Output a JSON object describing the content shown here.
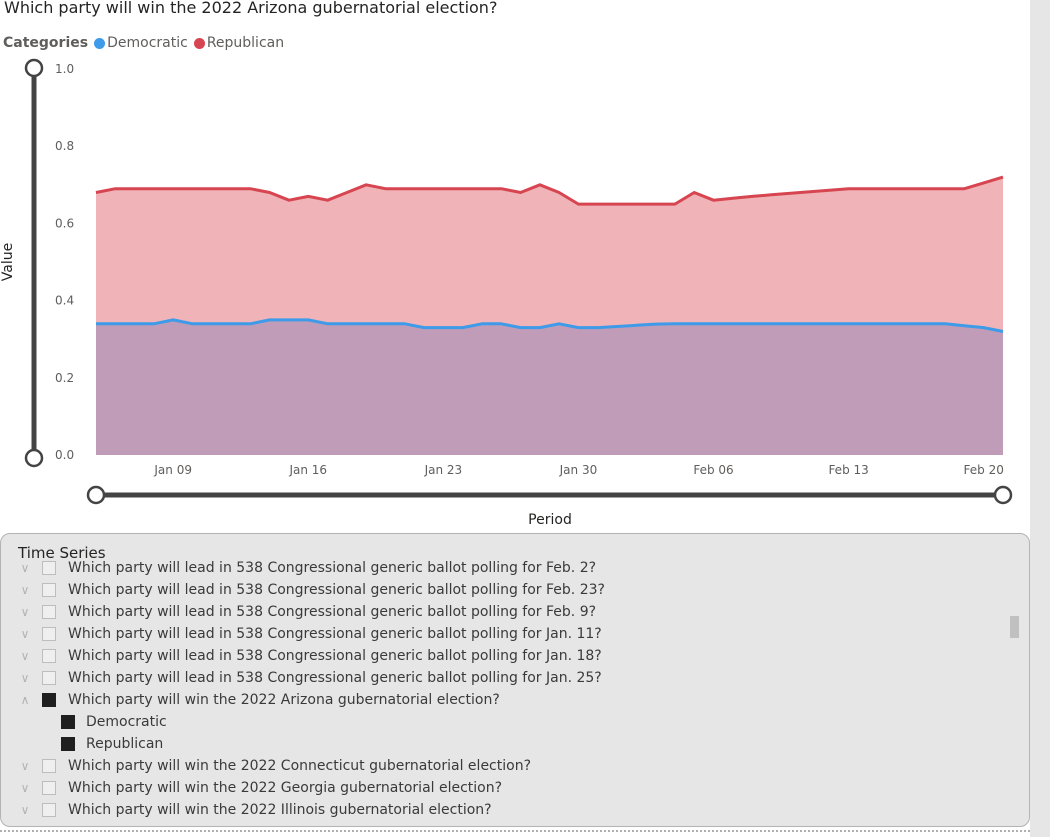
{
  "title": "Which party will win the 2022 Arizona gubernatorial election?",
  "legend": {
    "title": "Categories",
    "items": [
      {
        "label": "Democratic",
        "color": "#3d9be9"
      },
      {
        "label": "Republican",
        "color": "#d64550"
      }
    ]
  },
  "chart_data": {
    "type": "area",
    "xlabel": "Period",
    "ylabel": "Value",
    "ylim": [
      0,
      1
    ],
    "yticks": [
      "1.0",
      "0.8",
      "0.6",
      "0.4",
      "0.2",
      "0.0"
    ],
    "xtick_labels": [
      "Jan 09",
      "Jan 16",
      "Jan 23",
      "Jan 30",
      "Feb 06",
      "Feb 13",
      "Feb 20"
    ],
    "x": [
      "2022-01-05",
      "2022-01-06",
      "2022-01-07",
      "2022-01-08",
      "2022-01-09",
      "2022-01-10",
      "2022-01-11",
      "2022-01-12",
      "2022-01-13",
      "2022-01-14",
      "2022-01-15",
      "2022-01-16",
      "2022-01-17",
      "2022-01-18",
      "2022-01-19",
      "2022-01-20",
      "2022-01-21",
      "2022-01-22",
      "2022-01-23",
      "2022-01-24",
      "2022-01-25",
      "2022-01-26",
      "2022-01-27",
      "2022-01-28",
      "2022-01-29",
      "2022-01-30",
      "2022-01-31",
      "2022-02-01",
      "2022-02-02",
      "2022-02-03",
      "2022-02-04",
      "2022-02-05",
      "2022-02-06",
      "2022-02-07",
      "2022-02-08",
      "2022-02-09",
      "2022-02-10",
      "2022-02-11",
      "2022-02-12",
      "2022-02-13",
      "2022-02-14",
      "2022-02-15",
      "2022-02-16",
      "2022-02-17",
      "2022-02-18",
      "2022-02-19",
      "2022-02-20",
      "2022-02-21"
    ],
    "series": [
      {
        "name": "Democratic",
        "color": "#3d9be9",
        "fill": "#c09cb8",
        "values": [
          0.34,
          0.34,
          0.34,
          0.34,
          0.35,
          0.34,
          0.34,
          0.34,
          0.34,
          0.35,
          0.35,
          0.35,
          0.34,
          0.34,
          0.34,
          0.34,
          0.34,
          0.33,
          0.33,
          0.33,
          0.34,
          0.34,
          0.33,
          0.33,
          0.34,
          0.33,
          0.33,
          0.333,
          0.336,
          0.339,
          0.34,
          0.34,
          0.34,
          0.34,
          0.34,
          0.34,
          0.34,
          0.34,
          0.34,
          0.34,
          0.34,
          0.34,
          0.34,
          0.34,
          0.34,
          0.335,
          0.33,
          0.32
        ]
      },
      {
        "name": "Republican",
        "color": "#d64550",
        "fill": "#f0b3b7",
        "values": [
          0.68,
          0.69,
          0.69,
          0.69,
          0.69,
          0.69,
          0.69,
          0.69,
          0.69,
          0.68,
          0.66,
          0.67,
          0.66,
          0.68,
          0.7,
          0.69,
          0.69,
          0.69,
          0.69,
          0.69,
          0.69,
          0.69,
          0.68,
          0.7,
          0.68,
          0.65,
          0.65,
          0.65,
          0.65,
          0.65,
          0.65,
          0.68,
          0.66,
          0.665,
          0.67,
          0.674,
          0.678,
          0.682,
          0.686,
          0.69,
          0.69,
          0.69,
          0.69,
          0.69,
          0.69,
          0.69,
          0.705,
          0.72
        ]
      }
    ]
  },
  "time_series": {
    "title": "Time Series",
    "rows": [
      {
        "label": "Which party will lead in 538 Congressional generic ballot polling for Feb. 2?",
        "checked": false,
        "chevron": "down",
        "child": false
      },
      {
        "label": "Which party will lead in 538 Congressional generic ballot polling for Feb. 23?",
        "checked": false,
        "chevron": "down",
        "child": false
      },
      {
        "label": "Which party will lead in 538 Congressional generic ballot polling for Feb. 9?",
        "checked": false,
        "chevron": "down",
        "child": false
      },
      {
        "label": "Which party will lead in 538 Congressional generic ballot polling for Jan. 11?",
        "checked": false,
        "chevron": "down",
        "child": false
      },
      {
        "label": "Which party will lead in 538 Congressional generic ballot polling for Jan. 18?",
        "checked": false,
        "chevron": "down",
        "child": false
      },
      {
        "label": "Which party will lead in 538 Congressional generic ballot polling for Jan. 25?",
        "checked": false,
        "chevron": "down",
        "child": false
      },
      {
        "label": "Which party will win the 2022 Arizona gubernatorial election?",
        "checked": true,
        "chevron": "up",
        "child": false
      },
      {
        "label": "Democratic",
        "checked": true,
        "chevron": "",
        "child": true
      },
      {
        "label": "Republican",
        "checked": true,
        "chevron": "",
        "child": true
      },
      {
        "label": "Which party will win the 2022 Connecticut gubernatorial election?",
        "checked": false,
        "chevron": "down",
        "child": false
      },
      {
        "label": "Which party will win the 2022 Georgia gubernatorial election?",
        "checked": false,
        "chevron": "down",
        "child": false
      },
      {
        "label": "Which party will win the 2022 Illinois gubernatorial election?",
        "checked": false,
        "chevron": "down",
        "child": false
      }
    ]
  }
}
